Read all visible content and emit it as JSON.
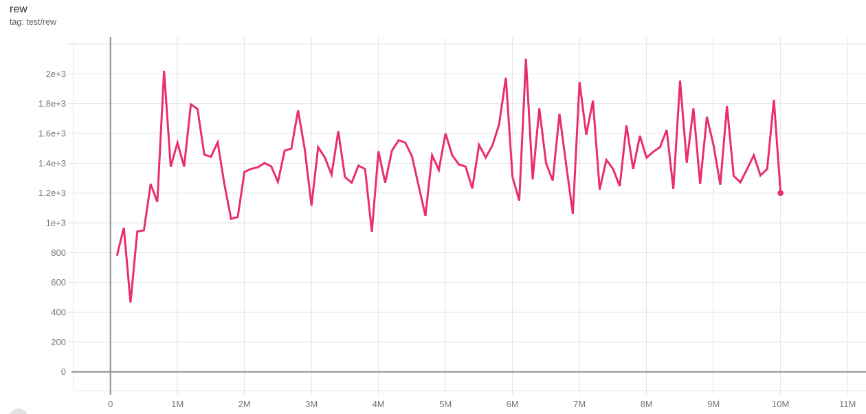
{
  "header": {
    "title": "rew",
    "tag": "tag: test/rew"
  },
  "colors": {
    "line": "#ea2e6c",
    "grid": "#e3e3e3",
    "axis_zero": "#8f8f8f",
    "tick_label": "#757575"
  },
  "chart_data": {
    "type": "line",
    "title": "rew",
    "xlabel": "",
    "ylabel": "",
    "x_unit": "steps (millions)",
    "x_tick_values": [
      0,
      1,
      2,
      3,
      4,
      5,
      6,
      7,
      8,
      9,
      10,
      11
    ],
    "x_tick_labels": [
      "0",
      "1M",
      "2M",
      "3M",
      "4M",
      "5M",
      "6M",
      "7M",
      "8M",
      "9M",
      "10M",
      "11M"
    ],
    "y_tick_values": [
      0,
      200,
      400,
      600,
      800,
      1000,
      1200,
      1400,
      1600,
      1800,
      2000
    ],
    "y_tick_labels": [
      "0",
      "200",
      "400",
      "600",
      "800",
      "1e+3",
      "1.2e+3",
      "1.4e+3",
      "1.6e+3",
      "1.8e+3",
      "2e+3"
    ],
    "y_grid_max": 2200,
    "grid": true,
    "legend": false,
    "series": [
      {
        "name": "test/rew",
        "end_marker": true,
        "points": [
          [
            0.1,
            785
          ],
          [
            0.2,
            967
          ],
          [
            0.3,
            465
          ],
          [
            0.4,
            941
          ],
          [
            0.5,
            950
          ],
          [
            0.6,
            1261
          ],
          [
            0.7,
            1141
          ],
          [
            0.8,
            2021
          ],
          [
            0.9,
            1377
          ],
          [
            1.0,
            1538
          ],
          [
            1.1,
            1377
          ],
          [
            1.2,
            1795
          ],
          [
            1.3,
            1764
          ],
          [
            1.4,
            1458
          ],
          [
            1.5,
            1443
          ],
          [
            1.6,
            1540
          ],
          [
            1.7,
            1262
          ],
          [
            1.8,
            1027
          ],
          [
            1.9,
            1039
          ],
          [
            2.0,
            1342
          ],
          [
            2.1,
            1362
          ],
          [
            2.2,
            1373
          ],
          [
            2.3,
            1401
          ],
          [
            2.4,
            1378
          ],
          [
            2.5,
            1275
          ],
          [
            2.6,
            1485
          ],
          [
            2.7,
            1498
          ],
          [
            2.8,
            1755
          ],
          [
            2.9,
            1494
          ],
          [
            3.0,
            1115
          ],
          [
            3.1,
            1508
          ],
          [
            3.2,
            1438
          ],
          [
            3.3,
            1323
          ],
          [
            3.4,
            1615
          ],
          [
            3.5,
            1307
          ],
          [
            3.6,
            1269
          ],
          [
            3.7,
            1384
          ],
          [
            3.8,
            1361
          ],
          [
            3.9,
            940
          ],
          [
            4.0,
            1480
          ],
          [
            4.1,
            1269
          ],
          [
            4.2,
            1484
          ],
          [
            4.3,
            1554
          ],
          [
            4.4,
            1538
          ],
          [
            4.5,
            1446
          ],
          [
            4.6,
            1246
          ],
          [
            4.7,
            1047
          ],
          [
            4.8,
            1454
          ],
          [
            4.9,
            1354
          ],
          [
            5.0,
            1600
          ],
          [
            5.1,
            1454
          ],
          [
            5.2,
            1392
          ],
          [
            5.3,
            1377
          ],
          [
            5.4,
            1230
          ],
          [
            5.5,
            1523
          ],
          [
            5.6,
            1438
          ],
          [
            5.7,
            1520
          ],
          [
            5.8,
            1661
          ],
          [
            5.9,
            1974
          ],
          [
            6.0,
            1307
          ],
          [
            6.1,
            1149
          ],
          [
            6.2,
            2100
          ],
          [
            6.3,
            1292
          ],
          [
            6.4,
            1769
          ],
          [
            6.5,
            1400
          ],
          [
            6.6,
            1284
          ],
          [
            6.7,
            1731
          ],
          [
            6.8,
            1392
          ],
          [
            6.9,
            1061
          ],
          [
            7.0,
            1946
          ],
          [
            7.1,
            1592
          ],
          [
            7.2,
            1820
          ],
          [
            7.3,
            1223
          ],
          [
            7.4,
            1423
          ],
          [
            7.5,
            1361
          ],
          [
            7.6,
            1246
          ],
          [
            7.7,
            1654
          ],
          [
            7.8,
            1361
          ],
          [
            7.9,
            1584
          ],
          [
            8.0,
            1437
          ],
          [
            8.1,
            1477
          ],
          [
            8.2,
            1508
          ],
          [
            8.3,
            1623
          ],
          [
            8.4,
            1227
          ],
          [
            8.5,
            1954
          ],
          [
            8.6,
            1403
          ],
          [
            8.7,
            1769
          ],
          [
            8.8,
            1261
          ],
          [
            8.9,
            1712
          ],
          [
            9.0,
            1520
          ],
          [
            9.1,
            1256
          ],
          [
            9.2,
            1784
          ],
          [
            9.3,
            1315
          ],
          [
            9.4,
            1272
          ],
          [
            9.5,
            1361
          ],
          [
            9.6,
            1454
          ],
          [
            9.7,
            1318
          ],
          [
            9.8,
            1361
          ],
          [
            9.9,
            1826
          ],
          [
            10.0,
            1200
          ]
        ]
      }
    ]
  }
}
